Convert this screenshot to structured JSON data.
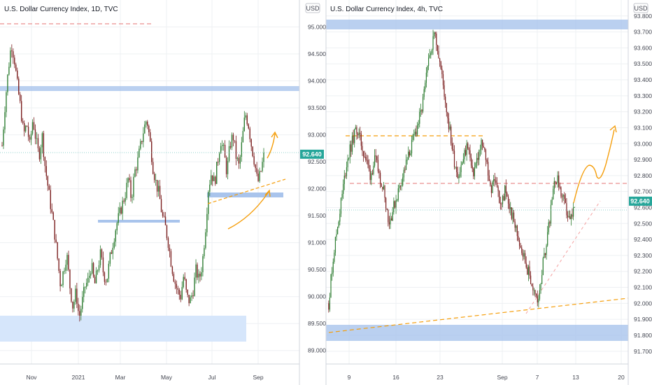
{
  "chart_data": [
    {
      "type": "candlestick",
      "title": "U.S. Dollar Currency Index, 1D, TVC",
      "currency": "USD",
      "ylim": [
        88.75,
        95.5
      ],
      "yticks": [
        "95.000",
        "94.500",
        "94.000",
        "93.500",
        "93.000",
        "92.500",
        "92.000",
        "91.500",
        "91.000",
        "90.500",
        "90.000",
        "89.500",
        "89.000"
      ],
      "ytick_values": [
        95.0,
        94.5,
        94.0,
        93.5,
        93.0,
        92.5,
        92.0,
        91.5,
        91.0,
        90.5,
        90.0,
        89.5,
        89.0
      ],
      "xticks": [
        "Nov",
        "2021",
        "Mar",
        "May",
        "Jul",
        "Sep"
      ],
      "last_price": "92.640",
      "price_path": [
        92.8,
        93.6,
        94.2,
        94.7,
        94.4,
        93.9,
        93.5,
        93.0,
        93.2,
        92.8,
        93.3,
        92.9,
        92.6,
        93.0,
        92.4,
        92.0,
        91.6,
        91.2,
        90.7,
        90.2,
        90.5,
        90.8,
        90.2,
        89.8,
        90.1,
        89.6,
        89.9,
        90.2,
        90.3,
        90.6,
        90.2,
        90.5,
        90.8,
        90.4,
        90.3,
        90.7,
        91.0,
        91.3,
        91.5,
        91.7,
        91.9,
        92.2,
        91.8,
        92.3,
        92.5,
        92.8,
        93.1,
        93.3,
        92.9,
        92.4,
        92.1,
        91.9,
        91.5,
        91.3,
        91.0,
        90.6,
        90.3,
        90.1,
        90.0,
        90.4,
        90.0,
        89.9,
        90.1,
        90.5,
        90.3,
        90.6,
        91.2,
        92.0,
        92.3,
        92.1,
        92.5,
        92.9,
        92.7,
        92.3,
        92.8,
        93.0,
        92.6,
        92.4,
        92.9,
        93.4,
        93.2,
        92.8,
        92.5,
        92.1,
        92.3,
        92.6
      ],
      "tag": "92.640"
    },
    {
      "type": "candlestick",
      "title": "U.S. Dollar Currency Index, 4h, TVC",
      "currency": "USD",
      "ylim": [
        91.62,
        93.9
      ],
      "yticks": [
        "93.800",
        "93.700",
        "93.600",
        "93.500",
        "93.400",
        "93.300",
        "93.200",
        "93.100",
        "93.000",
        "92.900",
        "92.800",
        "92.700",
        "92.600",
        "92.500",
        "92.400",
        "92.300",
        "92.200",
        "92.100",
        "92.000",
        "91.900",
        "91.800",
        "91.700"
      ],
      "ytick_values": [
        93.8,
        93.7,
        93.6,
        93.5,
        93.4,
        93.3,
        93.2,
        93.1,
        93.0,
        92.9,
        92.8,
        92.7,
        92.6,
        92.5,
        92.4,
        92.3,
        92.2,
        92.1,
        92.0,
        91.9,
        91.8,
        91.7
      ],
      "xticks": [
        "9",
        "16",
        "23",
        "Sep",
        "7",
        "13",
        "20"
      ],
      "last_price": "92.640",
      "price_path": [
        92.0,
        92.3,
        92.5,
        92.7,
        92.9,
        93.0,
        93.1,
        93.0,
        92.9,
        92.8,
        92.9,
        92.8,
        92.7,
        92.5,
        92.6,
        92.7,
        92.8,
        92.9,
        93.0,
        93.1,
        93.2,
        93.4,
        93.6,
        93.7,
        93.5,
        93.3,
        93.1,
        92.9,
        92.8,
        92.9,
        93.0,
        92.8,
        92.9,
        93.0,
        92.9,
        92.7,
        92.8,
        92.6,
        92.7,
        92.6,
        92.5,
        92.4,
        92.3,
        92.2,
        92.1,
        92.0,
        92.2,
        92.4,
        92.6,
        92.8,
        92.7,
        92.6,
        92.5,
        92.6
      ],
      "tag": "92.640"
    }
  ]
}
